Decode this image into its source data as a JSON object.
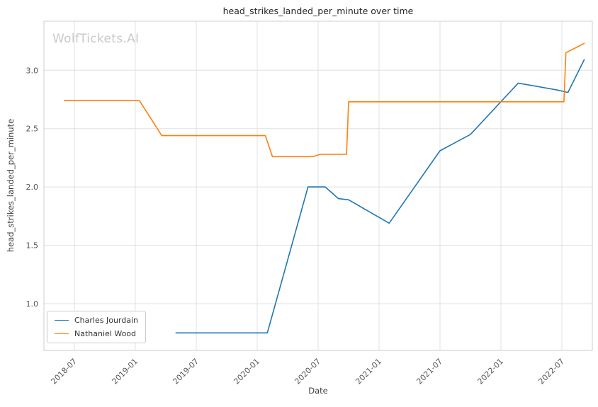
{
  "watermark": "WolfTickets.AI",
  "chart_data": {
    "type": "line",
    "title": "head_strikes_landed_per_minute over time",
    "xlabel": "Date",
    "ylabel": "head_strikes_landed_per_minute",
    "grid": true,
    "legend_position": "lower-left",
    "x_unit": "months-since-2018-01",
    "xlim_months": [
      3.0,
      57.0
    ],
    "ylim": [
      0.6,
      3.42
    ],
    "grid_color": "#e0e0e0",
    "border_color": "#cccccc",
    "x_ticks": [
      {
        "month": 6,
        "label": "2018-07"
      },
      {
        "month": 12,
        "label": "2019-01"
      },
      {
        "month": 18,
        "label": "2019-07"
      },
      {
        "month": 24,
        "label": "2020-01"
      },
      {
        "month": 30,
        "label": "2020-07"
      },
      {
        "month": 36,
        "label": "2021-01"
      },
      {
        "month": 42,
        "label": "2021-07"
      },
      {
        "month": 48,
        "label": "2022-01"
      },
      {
        "month": 54,
        "label": "2022-07"
      }
    ],
    "y_ticks": [
      {
        "value": 1.0,
        "label": "1.0"
      },
      {
        "value": 1.5,
        "label": "1.5"
      },
      {
        "value": 2.0,
        "label": "2.0"
      },
      {
        "value": 2.5,
        "label": "2.5"
      },
      {
        "value": 3.0,
        "label": "3.0"
      }
    ],
    "series": [
      {
        "name": "Charles Jourdain",
        "color": "#1f77b4",
        "points": [
          [
            16,
            0.75
          ],
          [
            25,
            0.75
          ],
          [
            29,
            2.0
          ],
          [
            30.7,
            2.0
          ],
          [
            32,
            1.9
          ],
          [
            33,
            1.89
          ],
          [
            37,
            1.69
          ],
          [
            42,
            2.31
          ],
          [
            45,
            2.45
          ],
          [
            49.7,
            2.89
          ],
          [
            53.6,
            2.83
          ],
          [
            54.6,
            2.81
          ],
          [
            56.2,
            3.09
          ]
        ]
      },
      {
        "name": "Nathaniel Wood",
        "color": "#ff7f0e",
        "points": [
          [
            5,
            2.74
          ],
          [
            12.4,
            2.74
          ],
          [
            14.6,
            2.44
          ],
          [
            24.8,
            2.44
          ],
          [
            25.5,
            2.26
          ],
          [
            29.5,
            2.26
          ],
          [
            30.2,
            2.28
          ],
          [
            32.8,
            2.28
          ],
          [
            33,
            2.73
          ],
          [
            54.2,
            2.73
          ],
          [
            54.4,
            3.15
          ],
          [
            56.2,
            3.23
          ]
        ]
      }
    ]
  }
}
